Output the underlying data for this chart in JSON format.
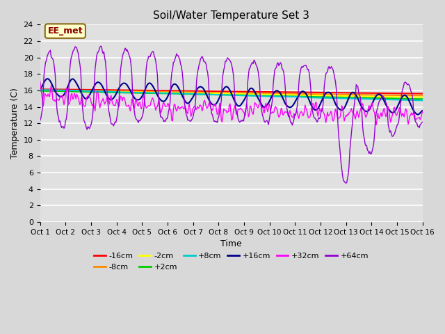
{
  "title": "Soil/Water Temperature Set 3",
  "xlabel": "Time",
  "ylabel": "Temperature (C)",
  "ylim": [
    0,
    24
  ],
  "yticks": [
    0,
    2,
    4,
    6,
    8,
    10,
    12,
    14,
    16,
    18,
    20,
    22,
    24
  ],
  "x_labels": [
    "Oct 1",
    "Oct 2",
    "Oct 3",
    "Oct 4",
    "Oct 5",
    "Oct 6",
    "Oct 7",
    "Oct 8",
    "Oct 9",
    "Oct 10",
    "Oct 11",
    "Oct 12",
    "Oct 13",
    "Oct 14",
    "Oct 15",
    "Oct 16"
  ],
  "annotation_text": "EE_met",
  "annotation_color": "#8B0000",
  "annotation_bg": "#FFFFCC",
  "bg_color": "#D8D8D8",
  "plot_bg": "#E0E0E0",
  "series": [
    {
      "label": "-16cm",
      "color": "#FF0000",
      "lw": 1.5
    },
    {
      "label": "-8cm",
      "color": "#FF8C00",
      "lw": 1.5
    },
    {
      "label": "-2cm",
      "color": "#FFFF00",
      "lw": 1.5
    },
    {
      "label": "+2cm",
      "color": "#00CC00",
      "lw": 1.5
    },
    {
      "label": "+8cm",
      "color": "#00CCCC",
      "lw": 1.5
    },
    {
      "label": "+16cm",
      "color": "#00008B",
      "lw": 1.5
    },
    {
      "label": "+32cm",
      "color": "#FF00FF",
      "lw": 1.0
    },
    {
      "label": "+64cm",
      "color": "#9400D3",
      "lw": 1.0
    }
  ],
  "n_points": 480,
  "figsize": [
    6.4,
    4.8
  ],
  "dpi": 100
}
